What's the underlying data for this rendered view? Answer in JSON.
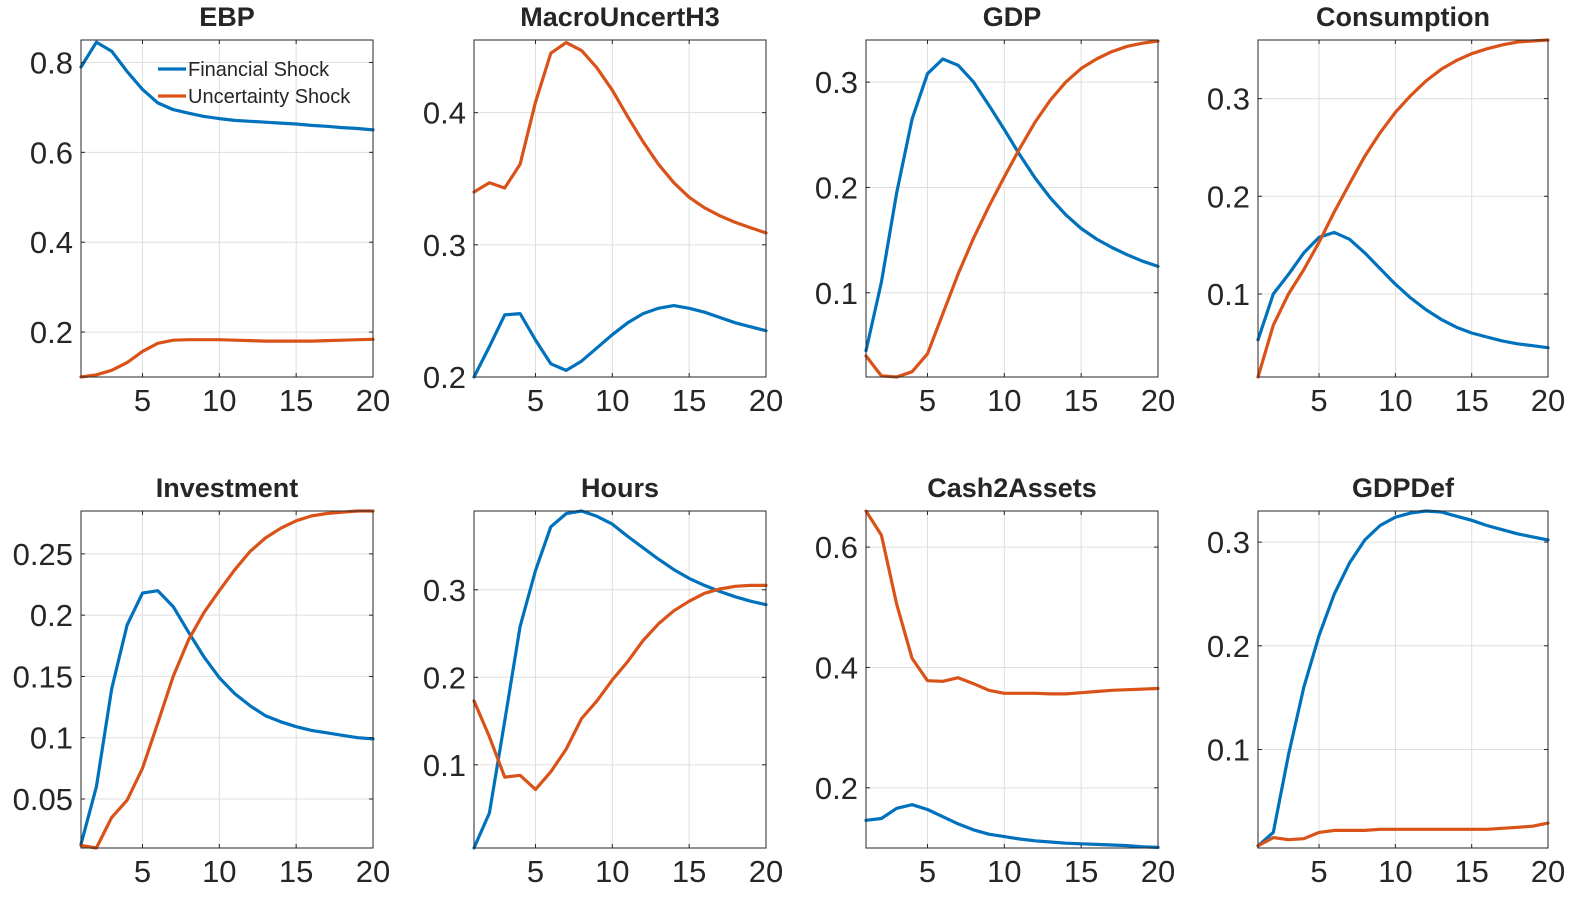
{
  "colors": {
    "financial": "#0072BD",
    "uncertainty": "#D95319",
    "axis": "#262626",
    "grid": "#dfdfdf"
  },
  "legend": {
    "placement": "top-right",
    "entries": [
      "Financial Shock",
      "Uncertainty Shock"
    ]
  },
  "chart_data": [
    {
      "type": "line",
      "title": "EBP",
      "xlim": [
        1,
        20
      ],
      "ylim": [
        0.1,
        0.85
      ],
      "xticks": [
        5,
        10,
        15,
        20
      ],
      "yticks": [
        0.2,
        0.4,
        0.6,
        0.8
      ],
      "yticklabels": [
        "0.2",
        "0.4",
        "0.6",
        "0.8"
      ],
      "grid": true,
      "x": [
        1,
        2,
        3,
        4,
        5,
        6,
        7,
        8,
        9,
        10,
        11,
        12,
        13,
        14,
        15,
        16,
        17,
        18,
        19,
        20
      ],
      "series": [
        {
          "name": "Financial Shock",
          "values": [
            0.79,
            0.845,
            0.825,
            0.78,
            0.74,
            0.71,
            0.695,
            0.687,
            0.68,
            0.675,
            0.671,
            0.669,
            0.667,
            0.665,
            0.663,
            0.66,
            0.658,
            0.655,
            0.653,
            0.65
          ]
        },
        {
          "name": "Uncertainty Shock",
          "values": [
            0.1,
            0.105,
            0.115,
            0.132,
            0.157,
            0.175,
            0.182,
            0.183,
            0.183,
            0.183,
            0.182,
            0.181,
            0.18,
            0.18,
            0.18,
            0.18,
            0.181,
            0.182,
            0.183,
            0.184
          ]
        }
      ]
    },
    {
      "type": "line",
      "title": "MacroUncertH3",
      "xlim": [
        1,
        20
      ],
      "ylim": [
        0.2,
        0.455
      ],
      "xticks": [
        5,
        10,
        15,
        20
      ],
      "yticks": [
        0.2,
        0.3,
        0.4
      ],
      "yticklabels": [
        "0.2",
        "0.3",
        "0.4"
      ],
      "grid": true,
      "x": [
        1,
        2,
        3,
        4,
        5,
        6,
        7,
        8,
        9,
        10,
        11,
        12,
        13,
        14,
        15,
        16,
        17,
        18,
        19,
        20
      ],
      "series": [
        {
          "name": "Financial Shock",
          "values": [
            0.2,
            0.223,
            0.247,
            0.248,
            0.228,
            0.21,
            0.205,
            0.212,
            0.222,
            0.232,
            0.241,
            0.248,
            0.252,
            0.254,
            0.252,
            0.249,
            0.245,
            0.241,
            0.238,
            0.235
          ]
        },
        {
          "name": "Uncertainty Shock",
          "values": [
            0.34,
            0.347,
            0.343,
            0.361,
            0.408,
            0.445,
            0.453,
            0.447,
            0.434,
            0.417,
            0.397,
            0.378,
            0.361,
            0.347,
            0.336,
            0.328,
            0.322,
            0.317,
            0.313,
            0.309
          ]
        }
      ]
    },
    {
      "type": "line",
      "title": "GDP",
      "xlim": [
        1,
        20
      ],
      "ylim": [
        0.02,
        0.34
      ],
      "xticks": [
        5,
        10,
        15,
        20
      ],
      "yticks": [
        0.1,
        0.2,
        0.3
      ],
      "yticklabels": [
        "0.1",
        "0.2",
        "0.3"
      ],
      "grid": true,
      "x": [
        1,
        2,
        3,
        4,
        5,
        6,
        7,
        8,
        9,
        10,
        11,
        12,
        13,
        14,
        15,
        16,
        17,
        18,
        19,
        20
      ],
      "series": [
        {
          "name": "Financial Shock",
          "values": [
            0.045,
            0.11,
            0.195,
            0.265,
            0.308,
            0.322,
            0.316,
            0.3,
            0.278,
            0.255,
            0.231,
            0.209,
            0.19,
            0.174,
            0.161,
            0.151,
            0.143,
            0.136,
            0.13,
            0.125
          ]
        },
        {
          "name": "Uncertainty Shock",
          "values": [
            0.04,
            0.021,
            0.02,
            0.025,
            0.042,
            0.08,
            0.118,
            0.152,
            0.182,
            0.21,
            0.237,
            0.262,
            0.283,
            0.3,
            0.313,
            0.322,
            0.329,
            0.334,
            0.337,
            0.339
          ]
        }
      ]
    },
    {
      "type": "line",
      "title": "Consumption",
      "xlim": [
        1,
        20
      ],
      "ylim": [
        0.015,
        0.36
      ],
      "xticks": [
        5,
        10,
        15,
        20
      ],
      "yticks": [
        0.1,
        0.2,
        0.3
      ],
      "yticklabels": [
        "0.1",
        "0.2",
        "0.3"
      ],
      "grid": true,
      "x": [
        1,
        2,
        3,
        4,
        5,
        6,
        7,
        8,
        9,
        10,
        11,
        12,
        13,
        14,
        15,
        16,
        17,
        18,
        19,
        20
      ],
      "series": [
        {
          "name": "Financial Shock",
          "values": [
            0.053,
            0.1,
            0.12,
            0.142,
            0.158,
            0.163,
            0.156,
            0.142,
            0.126,
            0.11,
            0.096,
            0.084,
            0.074,
            0.066,
            0.06,
            0.056,
            0.052,
            0.049,
            0.047,
            0.045
          ]
        },
        {
          "name": "Uncertainty Shock",
          "values": [
            0.015,
            0.068,
            0.1,
            0.125,
            0.153,
            0.184,
            0.213,
            0.241,
            0.265,
            0.286,
            0.303,
            0.318,
            0.33,
            0.339,
            0.346,
            0.351,
            0.355,
            0.358,
            0.359,
            0.36
          ]
        }
      ]
    },
    {
      "type": "line",
      "title": "Investment",
      "xlim": [
        1,
        20
      ],
      "ylim": [
        0.01,
        0.285
      ],
      "xticks": [
        5,
        10,
        15,
        20
      ],
      "yticks": [
        0.05,
        0.1,
        0.15,
        0.2,
        0.25
      ],
      "yticklabels": [
        "0.05",
        "0.1",
        "0.15",
        "0.2",
        "0.25"
      ],
      "grid": true,
      "x": [
        1,
        2,
        3,
        4,
        5,
        6,
        7,
        8,
        9,
        10,
        11,
        12,
        13,
        14,
        15,
        16,
        17,
        18,
        19,
        20
      ],
      "series": [
        {
          "name": "Financial Shock",
          "values": [
            0.013,
            0.06,
            0.14,
            0.192,
            0.218,
            0.22,
            0.207,
            0.186,
            0.166,
            0.149,
            0.136,
            0.126,
            0.118,
            0.113,
            0.109,
            0.106,
            0.104,
            0.102,
            0.1,
            0.099
          ]
        },
        {
          "name": "Uncertainty Shock",
          "values": [
            0.012,
            0.01,
            0.035,
            0.049,
            0.075,
            0.112,
            0.15,
            0.18,
            0.202,
            0.22,
            0.237,
            0.252,
            0.263,
            0.271,
            0.277,
            0.281,
            0.283,
            0.284,
            0.285,
            0.285
          ]
        }
      ]
    },
    {
      "type": "line",
      "title": "Hours",
      "xlim": [
        1,
        20
      ],
      "ylim": [
        0.005,
        0.39
      ],
      "xticks": [
        5,
        10,
        15,
        20
      ],
      "yticks": [
        0.1,
        0.2,
        0.3
      ],
      "yticklabels": [
        "0.1",
        "0.2",
        "0.3"
      ],
      "grid": true,
      "x": [
        1,
        2,
        3,
        4,
        5,
        6,
        7,
        8,
        9,
        10,
        11,
        12,
        13,
        14,
        15,
        16,
        17,
        18,
        19,
        20
      ],
      "series": [
        {
          "name": "Financial Shock",
          "values": [
            0.005,
            0.045,
            0.15,
            0.258,
            0.322,
            0.372,
            0.387,
            0.39,
            0.384,
            0.375,
            0.361,
            0.348,
            0.335,
            0.323,
            0.313,
            0.305,
            0.298,
            0.292,
            0.287,
            0.283
          ]
        },
        {
          "name": "Uncertainty Shock",
          "values": [
            0.173,
            0.132,
            0.086,
            0.088,
            0.072,
            0.092,
            0.118,
            0.153,
            0.173,
            0.197,
            0.218,
            0.242,
            0.261,
            0.276,
            0.287,
            0.296,
            0.301,
            0.304,
            0.305,
            0.305
          ]
        }
      ]
    },
    {
      "type": "line",
      "title": "Cash2Assets",
      "xlim": [
        1,
        20
      ],
      "ylim": [
        0.1,
        0.66
      ],
      "xticks": [
        5,
        10,
        15,
        20
      ],
      "yticks": [
        0.2,
        0.4,
        0.6
      ],
      "yticklabels": [
        "0.2",
        "0.4",
        "0.6"
      ],
      "grid": true,
      "x": [
        1,
        2,
        3,
        4,
        5,
        6,
        7,
        8,
        9,
        10,
        11,
        12,
        13,
        14,
        15,
        16,
        17,
        18,
        19,
        20
      ],
      "series": [
        {
          "name": "Financial Shock",
          "values": [
            0.146,
            0.149,
            0.166,
            0.172,
            0.164,
            0.152,
            0.14,
            0.13,
            0.123,
            0.119,
            0.115,
            0.112,
            0.11,
            0.108,
            0.107,
            0.106,
            0.105,
            0.104,
            0.102,
            0.101
          ]
        },
        {
          "name": "Uncertainty Shock",
          "values": [
            0.66,
            0.62,
            0.505,
            0.415,
            0.378,
            0.377,
            0.383,
            0.373,
            0.362,
            0.357,
            0.357,
            0.357,
            0.356,
            0.356,
            0.358,
            0.36,
            0.362,
            0.363,
            0.364,
            0.365
          ]
        }
      ]
    },
    {
      "type": "line",
      "title": "GDPDef",
      "xlim": [
        1,
        20
      ],
      "ylim": [
        0.005,
        0.33
      ],
      "xticks": [
        5,
        10,
        15,
        20
      ],
      "yticks": [
        0.1,
        0.2,
        0.3
      ],
      "yticklabels": [
        "0.1",
        "0.2",
        "0.3"
      ],
      "grid": true,
      "x": [
        1,
        2,
        3,
        4,
        5,
        6,
        7,
        8,
        9,
        10,
        11,
        12,
        13,
        14,
        15,
        16,
        17,
        18,
        19,
        20
      ],
      "series": [
        {
          "name": "Financial Shock",
          "values": [
            0.007,
            0.02,
            0.095,
            0.16,
            0.21,
            0.25,
            0.28,
            0.302,
            0.316,
            0.324,
            0.328,
            0.33,
            0.329,
            0.325,
            0.321,
            0.316,
            0.312,
            0.308,
            0.305,
            0.302
          ]
        },
        {
          "name": "Uncertainty Shock",
          "values": [
            0.007,
            0.015,
            0.013,
            0.014,
            0.02,
            0.022,
            0.022,
            0.022,
            0.023,
            0.023,
            0.023,
            0.023,
            0.023,
            0.023,
            0.023,
            0.023,
            0.024,
            0.025,
            0.026,
            0.029
          ]
        }
      ]
    }
  ]
}
